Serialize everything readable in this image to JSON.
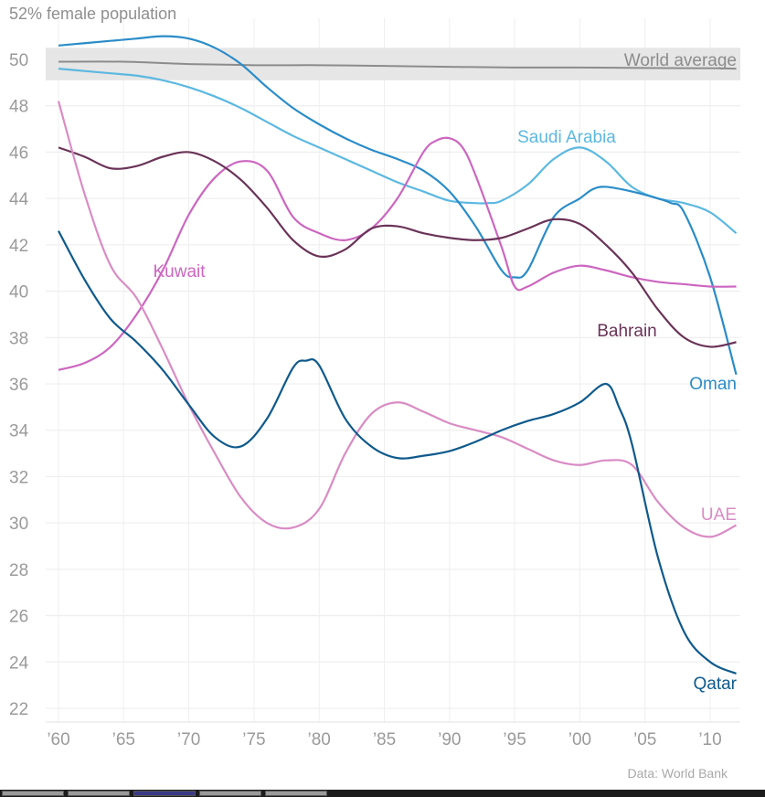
{
  "chart_data": {
    "type": "line",
    "title": "52% female population",
    "source": "Data: World Bank",
    "xlim": [
      1959,
      2013
    ],
    "ylim": [
      21.5,
      52.2
    ],
    "yticks": [
      22,
      24,
      26,
      28,
      30,
      32,
      34,
      36,
      38,
      40,
      42,
      44,
      46,
      48,
      50
    ],
    "xticks": [
      {
        "value": 1960,
        "label": "’60"
      },
      {
        "value": 1965,
        "label": "’65"
      },
      {
        "value": 1970,
        "label": "’70"
      },
      {
        "value": 1975,
        "label": "’75"
      },
      {
        "value": 1980,
        "label": "’80"
      },
      {
        "value": 1985,
        "label": "’85"
      },
      {
        "value": 1990,
        "label": "’90"
      },
      {
        "value": 1995,
        "label": "’95"
      },
      {
        "value": 2000,
        "label": "’00"
      },
      {
        "value": 2005,
        "label": "’05"
      },
      {
        "value": 2010,
        "label": "’10"
      }
    ],
    "grid": true,
    "series": [
      {
        "name": "World average",
        "color": "#8c8c8c",
        "x": [
          1960,
          1965,
          1970,
          1975,
          1980,
          1985,
          1990,
          1995,
          2000,
          2005,
          2010,
          2012
        ],
        "y": [
          49.9,
          49.9,
          49.8,
          49.75,
          49.75,
          49.72,
          49.68,
          49.65,
          49.65,
          49.63,
          49.62,
          49.6
        ]
      },
      {
        "name": "Saudi Arabia",
        "color": "#5cb8e0",
        "x": [
          1960,
          1962,
          1964,
          1966,
          1968,
          1970,
          1972,
          1974,
          1976,
          1978,
          1980,
          1982,
          1984,
          1986,
          1988,
          1990,
          1992,
          1993,
          1994,
          1996,
          1998,
          2000,
          2002,
          2004,
          2006,
          2008,
          2010,
          2012
        ],
        "y": [
          49.6,
          49.5,
          49.4,
          49.3,
          49.1,
          48.8,
          48.4,
          47.9,
          47.3,
          46.7,
          46.2,
          45.7,
          45.2,
          44.7,
          44.3,
          43.9,
          43.8,
          43.8,
          43.9,
          44.6,
          45.7,
          46.2,
          45.6,
          44.5,
          44.0,
          43.8,
          43.4,
          42.5
        ]
      },
      {
        "name": "Oman",
        "color": "#2a8cc8",
        "x": [
          1960,
          1962,
          1964,
          1966,
          1968,
          1970,
          1972,
          1974,
          1976,
          1978,
          1980,
          1982,
          1984,
          1986,
          1988,
          1990,
          1992,
          1994,
          1995,
          1996,
          1998,
          2000,
          2001,
          2002,
          2004,
          2006,
          2007,
          2008,
          2010,
          2012
        ],
        "y": [
          50.6,
          50.7,
          50.8,
          50.9,
          51.0,
          50.9,
          50.5,
          49.8,
          48.8,
          47.9,
          47.2,
          46.6,
          46.1,
          45.7,
          45.2,
          44.3,
          42.8,
          40.9,
          40.6,
          40.9,
          43.2,
          44.0,
          44.4,
          44.5,
          44.3,
          44.0,
          43.8,
          43.4,
          40.6,
          36.4
        ]
      },
      {
        "name": "Kuwait",
        "color": "#cc66c0",
        "x": [
          1960,
          1962,
          1964,
          1966,
          1968,
          1970,
          1972,
          1974,
          1976,
          1978,
          1980,
          1982,
          1984,
          1986,
          1988,
          1989,
          1990,
          1991,
          1992,
          1994,
          1995,
          1996,
          1998,
          2000,
          2002,
          2004,
          2006,
          2008,
          2010,
          2012
        ],
        "y": [
          36.6,
          36.9,
          37.6,
          39.0,
          40.9,
          43.3,
          44.9,
          45.6,
          45.2,
          43.2,
          42.5,
          42.2,
          42.7,
          44.0,
          46.0,
          46.5,
          46.6,
          46.2,
          45.0,
          41.9,
          40.2,
          40.2,
          40.8,
          41.1,
          40.9,
          40.6,
          40.4,
          40.3,
          40.2,
          40.2
        ]
      },
      {
        "name": "Bahrain",
        "color": "#6a3358",
        "x": [
          1960,
          1962,
          1964,
          1966,
          1968,
          1970,
          1972,
          1974,
          1976,
          1978,
          1980,
          1982,
          1984,
          1986,
          1988,
          1990,
          1992,
          1994,
          1996,
          1998,
          2000,
          2002,
          2004,
          2006,
          2008,
          2010,
          2012
        ],
        "y": [
          46.2,
          45.8,
          45.3,
          45.4,
          45.8,
          46.0,
          45.6,
          44.8,
          43.6,
          42.2,
          41.5,
          41.8,
          42.7,
          42.8,
          42.5,
          42.3,
          42.2,
          42.3,
          42.7,
          43.1,
          42.9,
          42.0,
          40.8,
          39.2,
          38.0,
          37.6,
          37.8
        ]
      },
      {
        "name": "UAE",
        "color": "#d98cc4",
        "x": [
          1960,
          1962,
          1964,
          1966,
          1968,
          1970,
          1972,
          1974,
          1976,
          1978,
          1980,
          1982,
          1984,
          1986,
          1988,
          1990,
          1992,
          1994,
          1996,
          1998,
          2000,
          2002,
          2004,
          2006,
          2008,
          2010,
          2012
        ],
        "y": [
          48.2,
          44.2,
          41.1,
          39.7,
          37.5,
          35.1,
          33.0,
          31.1,
          30.0,
          29.8,
          30.6,
          33.0,
          34.7,
          35.2,
          34.8,
          34.3,
          34.0,
          33.7,
          33.2,
          32.7,
          32.5,
          32.7,
          32.5,
          30.9,
          29.8,
          29.4,
          29.9
        ]
      },
      {
        "name": "Qatar",
        "color": "#0f5a8c",
        "x": [
          1960,
          1962,
          1964,
          1966,
          1968,
          1970,
          1972,
          1974,
          1976,
          1978,
          1979,
          1980,
          1982,
          1984,
          1986,
          1988,
          1990,
          1992,
          1994,
          1996,
          1998,
          2000,
          2002,
          2003,
          2004,
          2006,
          2008,
          2010,
          2012
        ],
        "y": [
          42.6,
          40.5,
          38.8,
          37.8,
          36.6,
          35.1,
          33.7,
          33.3,
          34.5,
          36.7,
          37.0,
          36.8,
          34.5,
          33.3,
          32.8,
          32.9,
          33.1,
          33.5,
          34.0,
          34.4,
          34.7,
          35.2,
          36.0,
          35.0,
          33.4,
          28.5,
          25.3,
          24.0,
          23.5
        ]
      }
    ],
    "annotations": [
      {
        "series": "World average",
        "text": "World average"
      },
      {
        "series": "Saudi Arabia",
        "text": "Saudi Arabia"
      },
      {
        "series": "Kuwait",
        "text": "Kuwait"
      },
      {
        "series": "Bahrain",
        "text": "Bahrain"
      },
      {
        "series": "Oman",
        "text": "Oman"
      },
      {
        "series": "UAE",
        "text": "UAE"
      },
      {
        "series": "Qatar",
        "text": "Qatar"
      }
    ]
  }
}
